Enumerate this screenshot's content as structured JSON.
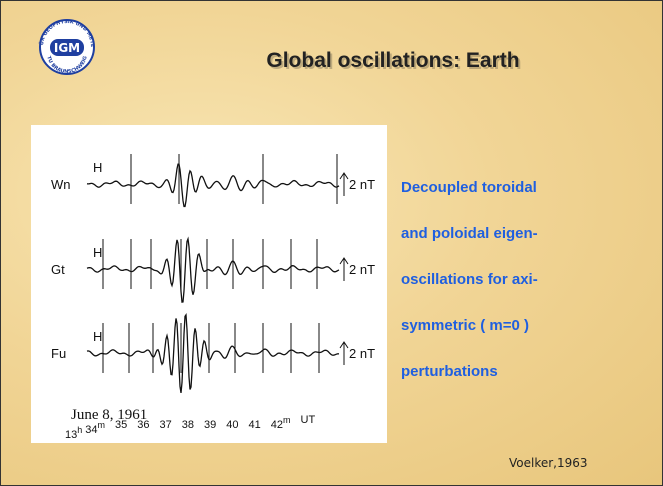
{
  "slide": {
    "title": "Global oscillations: Earth",
    "logo": {
      "short": "IGM",
      "ring_top": "INSTITUT FÜR GEOPHYSIK UND METEOROLOGIE",
      "ring_bottom": "TU BRAUNSCHWEIG"
    },
    "figure": {
      "traces": [
        {
          "station": "Wn",
          "component": "H",
          "scale": "2 nT"
        },
        {
          "station": "Gt",
          "component": "H",
          "scale": "2 nT"
        },
        {
          "station": "Fu",
          "component": "H",
          "scale": "2 nT"
        }
      ],
      "date": "June 8, 1961",
      "time_axis": [
        {
          "text": "13",
          "sup": "h"
        },
        {
          "text": "34",
          "sup": "m"
        },
        {
          "text": "35"
        },
        {
          "text": "36"
        },
        {
          "text": "37"
        },
        {
          "text": "38"
        },
        {
          "text": "39"
        },
        {
          "text": "40"
        },
        {
          "text": "41"
        },
        {
          "text": "42",
          "sup": "m"
        },
        {
          "text": "UT"
        }
      ]
    },
    "description": [
      "Decoupled toroidal",
      "and poloidal eigen-",
      "oscillations for axi-",
      "symmetric ( m=0 )",
      "perturbations"
    ],
    "citation": "Voelker,1963"
  }
}
